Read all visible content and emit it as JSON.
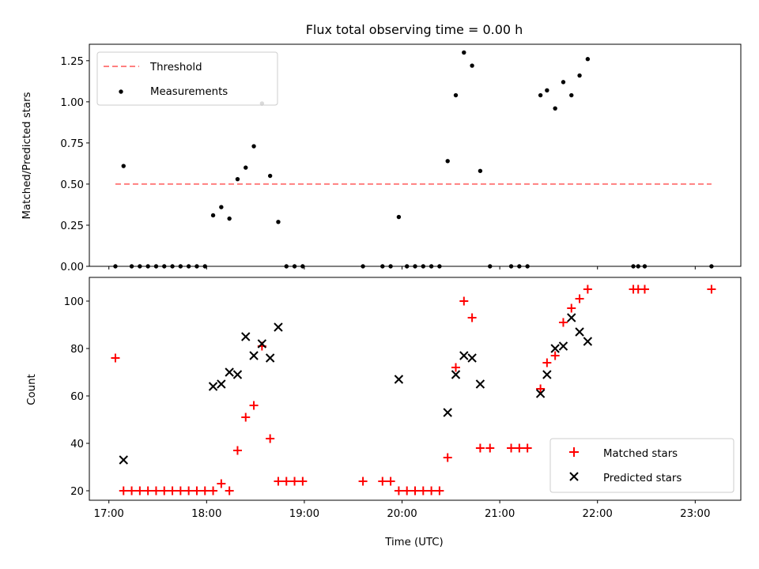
{
  "chart_data": [
    {
      "type": "scatter",
      "title": "Flux total observing time = 0.00 h",
      "xlabel": "",
      "ylabel": "Matched/Predicted stars",
      "xlim": [
        "16:48",
        "23:28"
      ],
      "ylim": [
        0,
        1.35
      ],
      "yticks": [
        0.0,
        0.25,
        0.5,
        0.75,
        1.0,
        1.25
      ],
      "ytick_labels": [
        "0.00",
        "0.25",
        "0.50",
        "0.75",
        "1.00",
        "1.25"
      ],
      "xticks": [
        "17:00",
        "18:00",
        "19:00",
        "20:00",
        "21:00",
        "22:00",
        "23:00"
      ],
      "legend_position": "upper left",
      "grid": false,
      "series": [
        {
          "name": "Threshold",
          "kind": "line",
          "style": "dashed",
          "color": "#ff7f7f",
          "points": [
            [
              "17:04",
              0.5
            ],
            [
              "23:10",
              0.5
            ]
          ]
        },
        {
          "name": "Measurements",
          "kind": "scatter",
          "marker": "dot",
          "color": "#000000",
          "points": [
            [
              "17:04",
              0.0
            ],
            [
              "17:09",
              0.61
            ],
            [
              "17:14",
              0.0
            ],
            [
              "17:19",
              0.0
            ],
            [
              "17:24",
              0.0
            ],
            [
              "17:29",
              0.0
            ],
            [
              "17:34",
              0.0
            ],
            [
              "17:39",
              0.0
            ],
            [
              "17:44",
              0.0
            ],
            [
              "17:49",
              0.0
            ],
            [
              "17:54",
              0.0
            ],
            [
              "17:59",
              0.0
            ],
            [
              "18:04",
              0.31
            ],
            [
              "18:09",
              0.36
            ],
            [
              "18:14",
              0.29
            ],
            [
              "18:19",
              0.53
            ],
            [
              "18:24",
              0.6
            ],
            [
              "18:29",
              0.73
            ],
            [
              "18:34",
              0.99
            ],
            [
              "18:39",
              0.55
            ],
            [
              "18:44",
              0.27
            ],
            [
              "18:49",
              0.0
            ],
            [
              "18:54",
              0.0
            ],
            [
              "18:59",
              0.0
            ],
            [
              "19:36",
              0.0
            ],
            [
              "19:48",
              0.0
            ],
            [
              "19:53",
              0.0
            ],
            [
              "19:58",
              0.3
            ],
            [
              "20:03",
              0.0
            ],
            [
              "20:08",
              0.0
            ],
            [
              "20:13",
              0.0
            ],
            [
              "20:18",
              0.0
            ],
            [
              "20:23",
              0.0
            ],
            [
              "20:28",
              0.64
            ],
            [
              "20:33",
              1.04
            ],
            [
              "20:38",
              1.3
            ],
            [
              "20:43",
              1.22
            ],
            [
              "20:48",
              0.58
            ],
            [
              "20:54",
              0.0
            ],
            [
              "21:07",
              0.0
            ],
            [
              "21:12",
              0.0
            ],
            [
              "21:17",
              0.0
            ],
            [
              "21:25",
              1.04
            ],
            [
              "21:29",
              1.07
            ],
            [
              "21:34",
              0.96
            ],
            [
              "21:39",
              1.12
            ],
            [
              "21:44",
              1.04
            ],
            [
              "21:49",
              1.16
            ],
            [
              "21:54",
              1.26
            ],
            [
              "22:22",
              0.0
            ],
            [
              "22:25",
              0.0
            ],
            [
              "22:29",
              0.0
            ],
            [
              "23:10",
              0.0
            ]
          ]
        }
      ]
    },
    {
      "type": "scatter",
      "title": "",
      "xlabel": "Time (UTC)",
      "ylabel": "Count",
      "xlim": [
        "16:48",
        "23:28"
      ],
      "ylim": [
        16,
        110
      ],
      "yticks": [
        20,
        40,
        60,
        80,
        100
      ],
      "ytick_labels": [
        "20",
        "40",
        "60",
        "80",
        "100"
      ],
      "xticks": [
        "17:00",
        "18:00",
        "19:00",
        "20:00",
        "21:00",
        "22:00",
        "23:00"
      ],
      "legend_position": "lower right",
      "grid": false,
      "series": [
        {
          "name": "Matched stars",
          "kind": "scatter",
          "marker": "plus",
          "color": "#ff0000",
          "points": [
            [
              "17:04",
              76
            ],
            [
              "17:09",
              20
            ],
            [
              "17:14",
              20
            ],
            [
              "17:19",
              20
            ],
            [
              "17:24",
              20
            ],
            [
              "17:29",
              20
            ],
            [
              "17:34",
              20
            ],
            [
              "17:39",
              20
            ],
            [
              "17:44",
              20
            ],
            [
              "17:49",
              20
            ],
            [
              "17:54",
              20
            ],
            [
              "17:59",
              20
            ],
            [
              "18:04",
              20
            ],
            [
              "18:09",
              23
            ],
            [
              "18:14",
              20
            ],
            [
              "18:19",
              37
            ],
            [
              "18:24",
              51
            ],
            [
              "18:29",
              56
            ],
            [
              "18:34",
              81
            ],
            [
              "18:39",
              42
            ],
            [
              "18:44",
              24
            ],
            [
              "18:49",
              24
            ],
            [
              "18:54",
              24
            ],
            [
              "18:59",
              24
            ],
            [
              "19:36",
              24
            ],
            [
              "19:48",
              24
            ],
            [
              "19:53",
              24
            ],
            [
              "19:58",
              20
            ],
            [
              "20:03",
              20
            ],
            [
              "20:08",
              20
            ],
            [
              "20:13",
              20
            ],
            [
              "20:18",
              20
            ],
            [
              "20:23",
              20
            ],
            [
              "20:28",
              34
            ],
            [
              "20:33",
              72
            ],
            [
              "20:38",
              100
            ],
            [
              "20:43",
              93
            ],
            [
              "20:48",
              38
            ],
            [
              "20:54",
              38
            ],
            [
              "21:07",
              38
            ],
            [
              "21:12",
              38
            ],
            [
              "21:17",
              38
            ],
            [
              "21:25",
              63
            ],
            [
              "21:29",
              74
            ],
            [
              "21:34",
              77
            ],
            [
              "21:39",
              91
            ],
            [
              "21:44",
              97
            ],
            [
              "21:49",
              101
            ],
            [
              "21:54",
              105
            ],
            [
              "22:22",
              105
            ],
            [
              "22:25",
              105
            ],
            [
              "22:29",
              105
            ],
            [
              "23:10",
              105
            ]
          ]
        },
        {
          "name": "Predicted stars",
          "kind": "scatter",
          "marker": "x",
          "color": "#000000",
          "points": [
            [
              "17:09",
              33
            ],
            [
              "18:04",
              64
            ],
            [
              "18:09",
              65
            ],
            [
              "18:14",
              70
            ],
            [
              "18:19",
              69
            ],
            [
              "18:24",
              85
            ],
            [
              "18:29",
              77
            ],
            [
              "18:34",
              82
            ],
            [
              "18:39",
              76
            ],
            [
              "18:44",
              89
            ],
            [
              "19:58",
              67
            ],
            [
              "20:28",
              53
            ],
            [
              "20:33",
              69
            ],
            [
              "20:38",
              77
            ],
            [
              "20:43",
              76
            ],
            [
              "20:48",
              65
            ],
            [
              "21:25",
              61
            ],
            [
              "21:29",
              69
            ],
            [
              "21:34",
              80
            ],
            [
              "21:39",
              81
            ],
            [
              "21:44",
              93
            ],
            [
              "21:49",
              87
            ],
            [
              "21:54",
              83
            ]
          ]
        }
      ]
    }
  ]
}
